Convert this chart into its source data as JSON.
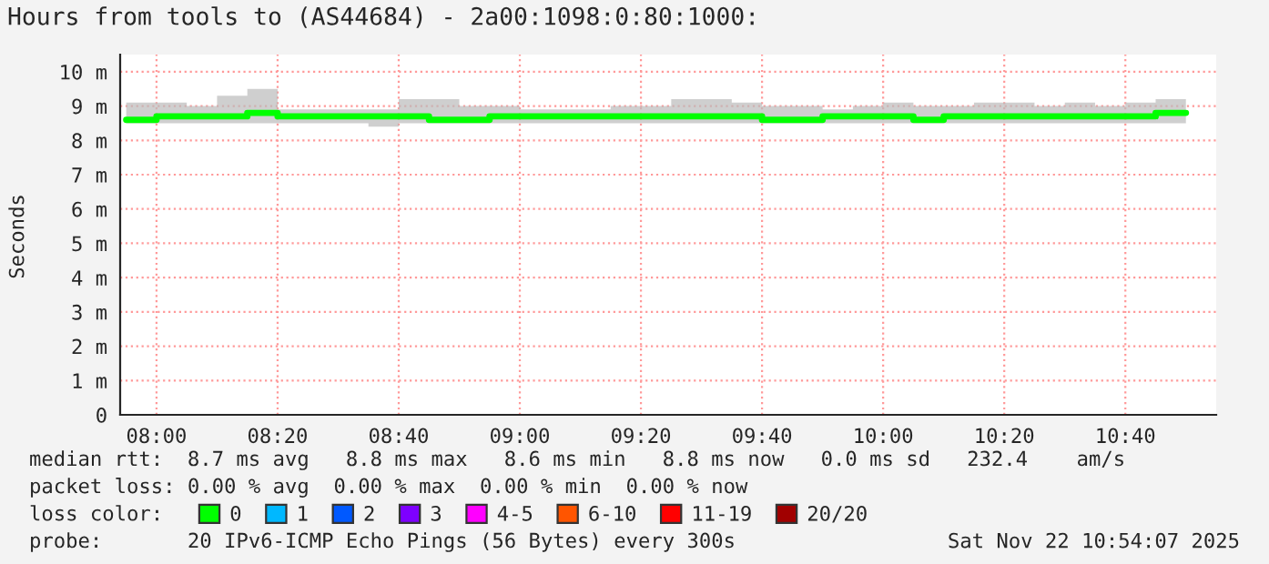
{
  "chart_data": {
    "type": "step",
    "title": "Hours from tools to (AS44684) - 2a00:1098:0:80:1000:",
    "ylabel": "Seconds",
    "x": [
      "2025-11-22T07:55",
      "2025-11-22T08:00",
      "2025-11-22T08:05",
      "2025-11-22T08:10",
      "2025-11-22T08:15",
      "2025-11-22T08:20",
      "2025-11-22T08:25",
      "2025-11-22T08:30",
      "2025-11-22T08:35",
      "2025-11-22T08:40",
      "2025-11-22T08:45",
      "2025-11-22T08:50",
      "2025-11-22T08:55",
      "2025-11-22T09:00",
      "2025-11-22T09:05",
      "2025-11-22T09:10",
      "2025-11-22T09:15",
      "2025-11-22T09:20",
      "2025-11-22T09:25",
      "2025-11-22T09:30",
      "2025-11-22T09:35",
      "2025-11-22T09:40",
      "2025-11-22T09:45",
      "2025-11-22T09:50",
      "2025-11-22T09:55",
      "2025-11-22T10:00",
      "2025-11-22T10:05",
      "2025-11-22T10:10",
      "2025-11-22T10:15",
      "2025-11-22T10:20",
      "2025-11-22T10:25",
      "2025-11-22T10:30",
      "2025-11-22T10:35",
      "2025-11-22T10:40",
      "2025-11-22T10:45",
      "2025-11-22T10:50"
    ],
    "series": [
      {
        "name": "0",
        "color": "#00ff00",
        "values": [
          8.6,
          8.6,
          8.7,
          8.7,
          8.7,
          8.8,
          8.7,
          8.7,
          8.7,
          8.7,
          8.7,
          8.6,
          8.6,
          8.7,
          8.7,
          8.7,
          8.7,
          8.7,
          8.7,
          8.7,
          8.7,
          8.7,
          8.6,
          8.6,
          8.7,
          8.7,
          8.7,
          8.6,
          8.7,
          8.7,
          8.7,
          8.7,
          8.7,
          8.7,
          8.7,
          8.8
        ],
        "lower": [
          8.5,
          8.5,
          8.5,
          8.5,
          8.5,
          8.5,
          8.5,
          8.5,
          8.5,
          8.4,
          8.5,
          8.5,
          8.5,
          8.5,
          8.5,
          8.5,
          8.5,
          8.5,
          8.5,
          8.5,
          8.5,
          8.5,
          8.5,
          8.5,
          8.5,
          8.5,
          8.5,
          8.5,
          8.5,
          8.5,
          8.5,
          8.5,
          8.5,
          8.5,
          8.5,
          8.5
        ],
        "upper": [
          9.0,
          9.1,
          9.1,
          9.0,
          9.3,
          9.5,
          8.9,
          8.9,
          8.9,
          8.9,
          9.2,
          9.2,
          9.0,
          9.0,
          8.9,
          8.9,
          8.9,
          9.0,
          9.0,
          9.2,
          9.2,
          9.1,
          9.0,
          9.0,
          8.9,
          9.0,
          9.1,
          9.0,
          9.0,
          9.1,
          9.1,
          9.0,
          9.1,
          9.0,
          9.1,
          9.2
        ]
      },
      {
        "name": "1",
        "color": "#00b8ff",
        "values": [
          null,
          null,
          null,
          null,
          null,
          null,
          null,
          null,
          null,
          null,
          null,
          null,
          null,
          null,
          null,
          null,
          null,
          null,
          null,
          null,
          null,
          null,
          null,
          null,
          null,
          null,
          null,
          null,
          null,
          null,
          null,
          null,
          null,
          null,
          null,
          null
        ]
      },
      {
        "name": "2",
        "color": "#0059ff",
        "values": [
          null,
          null,
          null,
          null,
          null,
          null,
          null,
          null,
          null,
          null,
          null,
          null,
          null,
          null,
          null,
          null,
          null,
          null,
          null,
          null,
          null,
          null,
          null,
          null,
          null,
          null,
          null,
          null,
          null,
          null,
          null,
          null,
          null,
          null,
          null,
          null
        ]
      },
      {
        "name": "3",
        "color": "#7e00ff",
        "values": [
          null,
          null,
          null,
          null,
          null,
          null,
          null,
          null,
          null,
          null,
          null,
          null,
          null,
          null,
          null,
          null,
          null,
          null,
          null,
          null,
          null,
          null,
          null,
          null,
          null,
          null,
          null,
          null,
          null,
          null,
          null,
          null,
          null,
          null,
          null,
          null
        ]
      },
      {
        "name": "4-5",
        "color": "#ff00ff",
        "values": [
          null,
          null,
          null,
          null,
          null,
          null,
          null,
          null,
          null,
          null,
          null,
          null,
          null,
          null,
          null,
          null,
          null,
          null,
          null,
          null,
          null,
          null,
          null,
          null,
          null,
          null,
          null,
          null,
          null,
          null,
          null,
          null,
          null,
          null,
          null,
          null
        ]
      },
      {
        "name": "6-10",
        "color": "#ff5500",
        "values": [
          null,
          null,
          null,
          null,
          null,
          null,
          null,
          null,
          null,
          null,
          null,
          null,
          null,
          null,
          null,
          null,
          null,
          null,
          null,
          null,
          null,
          null,
          null,
          null,
          null,
          null,
          null,
          null,
          null,
          null,
          null,
          null,
          null,
          null,
          null,
          null
        ]
      },
      {
        "name": "11-19",
        "color": "#ff0000",
        "values": [
          null,
          null,
          null,
          null,
          null,
          null,
          null,
          null,
          null,
          null,
          null,
          null,
          null,
          null,
          null,
          null,
          null,
          null,
          null,
          null,
          null,
          null,
          null,
          null,
          null,
          null,
          null,
          null,
          null,
          null,
          null,
          null,
          null,
          null,
          null,
          null
        ]
      },
      {
        "name": "20/20",
        "color": "#a10000",
        "values": [
          null,
          null,
          null,
          null,
          null,
          null,
          null,
          null,
          null,
          null,
          null,
          null,
          null,
          null,
          null,
          null,
          null,
          null,
          null,
          null,
          null,
          null,
          null,
          null,
          null,
          null,
          null,
          null,
          null,
          null,
          null,
          null,
          null,
          null,
          null,
          null
        ]
      }
    ],
    "legend_title": "loss color:",
    "legend": "bottom",
    "xlim": [
      "2025-11-22T07:54",
      "2025-11-22T10:55"
    ],
    "xticks": [
      {
        "value": "2025-11-22T08:00",
        "label": "08:00"
      },
      {
        "value": "2025-11-22T08:20",
        "label": "08:20"
      },
      {
        "value": "2025-11-22T08:40",
        "label": "08:40"
      },
      {
        "value": "2025-11-22T09:00",
        "label": "09:00"
      },
      {
        "value": "2025-11-22T09:20",
        "label": "09:20"
      },
      {
        "value": "2025-11-22T09:40",
        "label": "09:40"
      },
      {
        "value": "2025-11-22T10:00",
        "label": "10:00"
      },
      {
        "value": "2025-11-22T10:20",
        "label": "10:20"
      },
      {
        "value": "2025-11-22T10:40",
        "label": "10:40"
      }
    ],
    "ylim": [
      0,
      10.5
    ],
    "yticks": [
      0,
      {
        "value": 1,
        "label": "1 m"
      },
      {
        "value": 2,
        "label": "2 m"
      },
      {
        "value": 3,
        "label": "3 m"
      },
      {
        "value": 4,
        "label": "4 m"
      },
      {
        "value": 5,
        "label": "5 m"
      },
      {
        "value": 6,
        "label": "6 m"
      },
      {
        "value": 7,
        "label": "7 m"
      },
      {
        "value": 8,
        "label": "8 m"
      },
      {
        "value": 9,
        "label": "9 m"
      },
      {
        "value": 10,
        "label": "10 m"
      }
    ],
    "grid": true,
    "line_style": "solid",
    "marker": "none",
    "annotations": [
      "median rtt:  8.7 ms avg   8.8 ms max   8.6 ms min   8.8 ms now   0.0 ms sd   232.4    am/s",
      "packet loss: 0.00 % avg  0.00 % max  0.00 % min  0.00 % now",
      "probe:       20 IPv6-ICMP Echo Pings (56 Bytes) every 300s",
      "Sat Nov 22 10:54:07 2025"
    ]
  }
}
